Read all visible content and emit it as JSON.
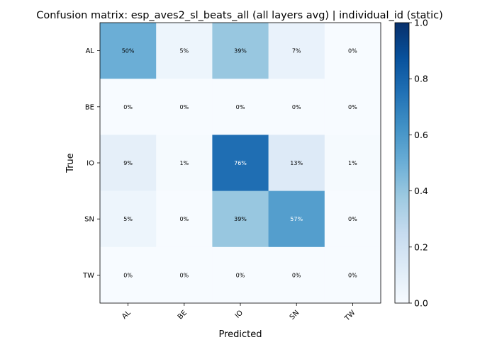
{
  "chart_data": {
    "type": "heatmap",
    "title": "Confusion matrix: esp_aves2_sl_beats_all (all layers avg) | individual_id (static)",
    "xlabel": "Predicted",
    "ylabel": "True",
    "row_labels": [
      "AL",
      "BE",
      "IO",
      "SN",
      "TW"
    ],
    "col_labels": [
      "AL",
      "BE",
      "IO",
      "SN",
      "TW"
    ],
    "values": [
      [
        0.5,
        0.05,
        0.39,
        0.07,
        0.0
      ],
      [
        0.0,
        0.0,
        0.0,
        0.0,
        0.0
      ],
      [
        0.09,
        0.01,
        0.76,
        0.13,
        0.01
      ],
      [
        0.05,
        0.0,
        0.39,
        0.57,
        0.0
      ],
      [
        0.0,
        0.0,
        0.0,
        0.0,
        0.0
      ]
    ],
    "cell_labels": [
      [
        "50%",
        "5%",
        "39%",
        "7%",
        "0%"
      ],
      [
        "0%",
        "0%",
        "0%",
        "0%",
        "0%"
      ],
      [
        "9%",
        "1%",
        "76%",
        "13%",
        "1%"
      ],
      [
        "5%",
        "0%",
        "39%",
        "57%",
        "0%"
      ],
      [
        "0%",
        "0%",
        "0%",
        "0%",
        "0%"
      ]
    ],
    "colormap": "Blues",
    "colorbar": {
      "range": [
        0.0,
        1.0
      ],
      "ticks": [
        0.0,
        0.2,
        0.4,
        0.6,
        0.8,
        1.0
      ],
      "tick_labels": [
        "0.0",
        "0.2",
        "0.4",
        "0.6",
        "0.8",
        "1.0"
      ]
    }
  }
}
